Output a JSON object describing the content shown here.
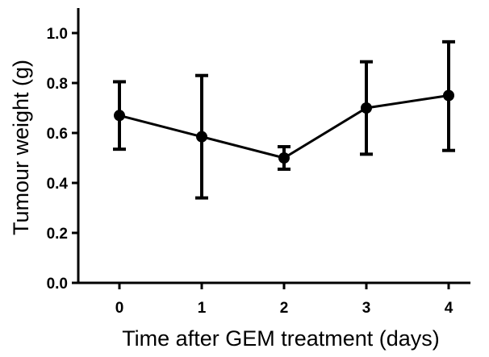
{
  "chart_data": {
    "type": "line",
    "title": "",
    "xlabel": "Time after GEM treatment (days)",
    "ylabel": "Tumour weight (g)",
    "x_ticks": [
      "0",
      "1",
      "2",
      "3",
      "4"
    ],
    "y_ticks": [
      "0.0",
      "0.2",
      "0.4",
      "0.6",
      "0.8",
      "1.0"
    ],
    "ylim": [
      0,
      1.1
    ],
    "grid": false,
    "legend": "none",
    "series": [
      {
        "x": [
          0,
          1,
          2,
          3,
          4
        ],
        "y": [
          0.67,
          0.585,
          0.5,
          0.7,
          0.75
        ],
        "error_low": [
          0.535,
          0.34,
          0.455,
          0.515,
          0.53
        ],
        "error_high": [
          0.805,
          0.83,
          0.545,
          0.885,
          0.965
        ],
        "color": "#000000"
      }
    ]
  }
}
